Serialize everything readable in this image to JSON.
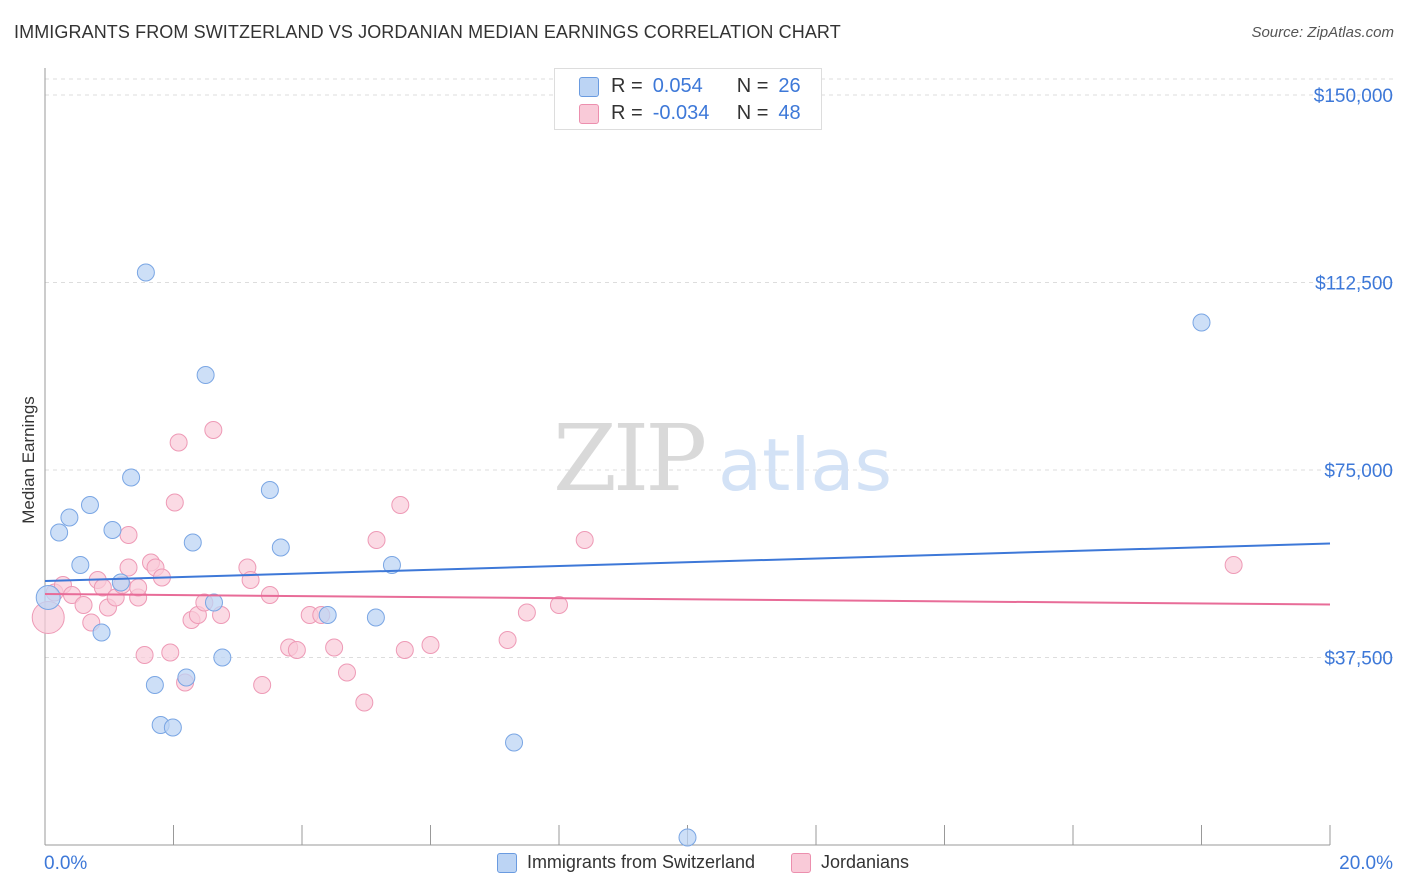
{
  "title": "IMMIGRANTS FROM SWITZERLAND VS JORDANIAN MEDIAN EARNINGS CORRELATION CHART",
  "source": "Source: ZipAtlas.com",
  "watermark": {
    "zip": "ZIP",
    "atlas": "atlas"
  },
  "colors": {
    "blue": "#3d78d8",
    "blue_fill": "#bcd4f4",
    "blue_stroke": "#7aa6e4",
    "pink": "#e86c98",
    "pink_fill": "#f9cad8",
    "pink_stroke": "#ee9ab6",
    "axis_label": "#3d78d8",
    "grid": "#dddddd"
  },
  "stats_box": {
    "rows": [
      {
        "r_label": "R =",
        "r_value": "0.054",
        "n_label": "N =",
        "n_value": "26"
      },
      {
        "r_label": "R =",
        "r_value": "-0.034",
        "n_label": "N =",
        "n_value": "48"
      }
    ]
  },
  "legend": [
    {
      "label": "Immigrants from Switzerland"
    },
    {
      "label": "Jordanians"
    }
  ],
  "chart_data": {
    "type": "scatter",
    "title": "IMMIGRANTS FROM SWITZERLAND VS JORDANIAN MEDIAN EARNINGS CORRELATION CHART",
    "xlabel": "",
    "ylabel": "Median Earnings",
    "xlim": [
      0,
      20
    ],
    "ylim": [
      0,
      157000
    ],
    "x_tick_labels": [
      "0.0%",
      "20.0%"
    ],
    "y_ticks": [
      37500,
      75000,
      112500,
      150000
    ],
    "y_tick_labels": [
      "$37,500",
      "$75,000",
      "$112,500",
      "$150,000"
    ],
    "grid": true,
    "legend_position": "bottom",
    "series": [
      {
        "name": "Immigrants from Switzerland",
        "color": "#3d78d8",
        "R": 0.054,
        "N": 26,
        "trend": [
          [
            0,
            52800
          ],
          [
            20,
            60300
          ]
        ],
        "points": [
          [
            0.05,
            49500
          ],
          [
            0.22,
            62500
          ],
          [
            0.38,
            65500
          ],
          [
            0.55,
            56000
          ],
          [
            0.7,
            68000
          ],
          [
            0.88,
            42500
          ],
          [
            1.05,
            63000
          ],
          [
            1.18,
            52500
          ],
          [
            1.34,
            73500
          ],
          [
            1.57,
            114500
          ],
          [
            1.71,
            32000
          ],
          [
            1.8,
            24000
          ],
          [
            1.99,
            23500
          ],
          [
            2.2,
            33500
          ],
          [
            2.3,
            60500
          ],
          [
            2.5,
            94000
          ],
          [
            2.63,
            48500
          ],
          [
            2.76,
            37500
          ],
          [
            3.5,
            71000
          ],
          [
            3.67,
            59500
          ],
          [
            4.4,
            46000
          ],
          [
            5.15,
            45500
          ],
          [
            5.4,
            56000
          ],
          [
            7.3,
            20500
          ],
          [
            10.0,
            1500
          ],
          [
            18.0,
            104500
          ]
        ]
      },
      {
        "name": "Jordanians",
        "color": "#e86c98",
        "R": -0.034,
        "N": 48,
        "trend": [
          [
            0,
            50200
          ],
          [
            20,
            48100
          ]
        ],
        "points": [
          [
            0.05,
            45500
          ],
          [
            0.15,
            50500
          ],
          [
            0.28,
            52000
          ],
          [
            0.42,
            50000
          ],
          [
            0.6,
            48000
          ],
          [
            0.72,
            44500
          ],
          [
            0.82,
            53000
          ],
          [
            0.9,
            51500
          ],
          [
            0.98,
            47500
          ],
          [
            1.1,
            49500
          ],
          [
            1.2,
            52000
          ],
          [
            1.3,
            62000
          ],
          [
            1.3,
            55500
          ],
          [
            1.45,
            49500
          ],
          [
            1.45,
            51500
          ],
          [
            1.55,
            38000
          ],
          [
            1.65,
            56500
          ],
          [
            1.72,
            55500
          ],
          [
            1.82,
            53500
          ],
          [
            1.95,
            38500
          ],
          [
            2.02,
            68500
          ],
          [
            2.08,
            80500
          ],
          [
            2.18,
            32500
          ],
          [
            2.28,
            45000
          ],
          [
            2.38,
            46000
          ],
          [
            2.48,
            48500
          ],
          [
            2.62,
            83000
          ],
          [
            2.74,
            46000
          ],
          [
            3.15,
            55500
          ],
          [
            3.2,
            53000
          ],
          [
            3.38,
            32000
          ],
          [
            3.5,
            50000
          ],
          [
            3.8,
            39500
          ],
          [
            3.92,
            39000
          ],
          [
            4.12,
            46000
          ],
          [
            4.3,
            46000
          ],
          [
            4.5,
            39500
          ],
          [
            4.7,
            34500
          ],
          [
            4.97,
            28500
          ],
          [
            5.16,
            61000
          ],
          [
            5.53,
            68000
          ],
          [
            5.6,
            39000
          ],
          [
            6.0,
            40000
          ],
          [
            7.2,
            41000
          ],
          [
            7.5,
            46500
          ],
          [
            8.0,
            48000
          ],
          [
            8.4,
            61000
          ],
          [
            18.5,
            56000
          ]
        ]
      }
    ]
  }
}
